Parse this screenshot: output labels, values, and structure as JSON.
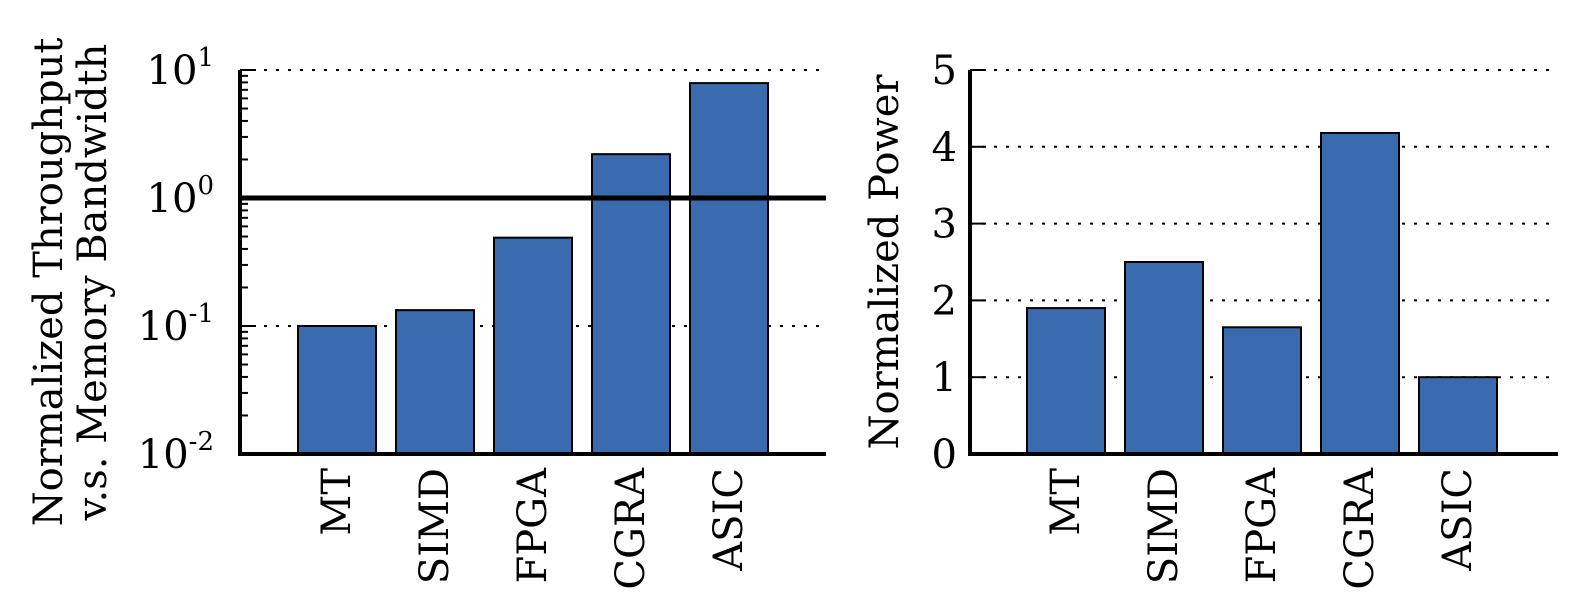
{
  "chart_data": [
    {
      "type": "bar",
      "categories": [
        "MT",
        "SIMD",
        "FPGA",
        "CGRA",
        "ASIC"
      ],
      "values": [
        0.1,
        0.133,
        0.49,
        2.2,
        7.9
      ],
      "ylabel_lines": [
        "Normalized Throughput",
        "v.s. Memory Bandwidth"
      ],
      "yscale": "log",
      "ylim": [
        0.01,
        10
      ],
      "yticks": [
        {
          "base": "10",
          "exp": "-2",
          "value": 0.01
        },
        {
          "base": "10",
          "exp": "-1",
          "value": 0.1
        },
        {
          "base": "10",
          "exp": "0",
          "value": 1
        },
        {
          "base": "10",
          "exp": "1",
          "value": 10
        }
      ],
      "reference_line": 1,
      "grid": "horizontal dotted",
      "bar_color": "#3a6baf"
    },
    {
      "type": "bar",
      "categories": [
        "MT",
        "SIMD",
        "FPGA",
        "CGRA",
        "ASIC"
      ],
      "values": [
        1.9,
        2.5,
        1.65,
        4.18,
        1.0
      ],
      "ylabel": "Normalized Power",
      "yscale": "linear",
      "ylim": [
        0,
        5
      ],
      "yticks": [
        "0",
        "1",
        "2",
        "3",
        "4",
        "5"
      ],
      "grid": "horizontal dotted",
      "bar_color": "#3a6baf"
    }
  ]
}
